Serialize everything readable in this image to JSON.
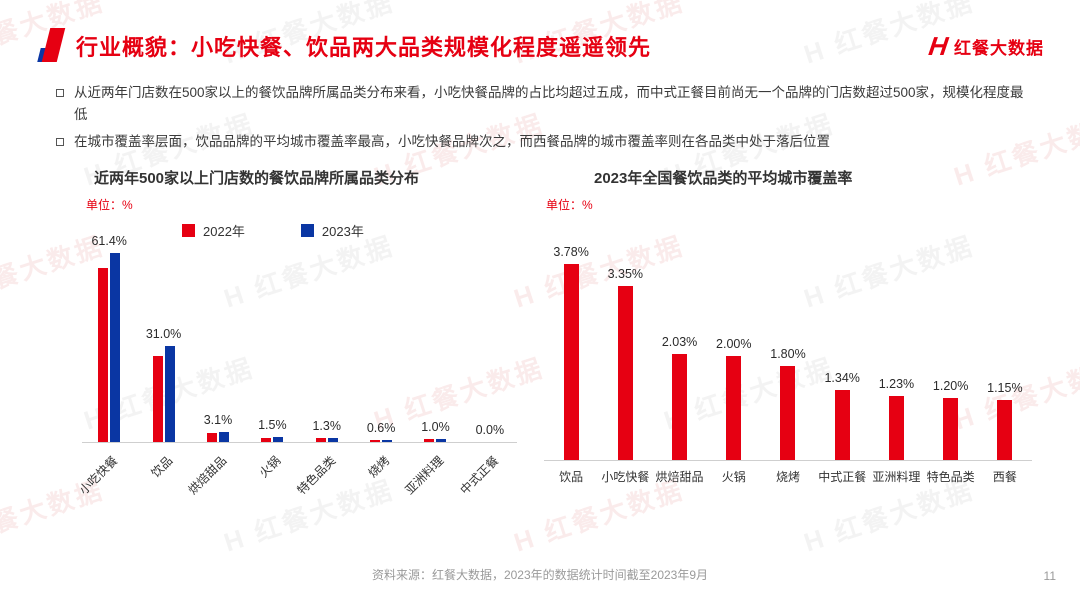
{
  "brand": {
    "red": "#e60012",
    "blue": "#0a36a3"
  },
  "header": {
    "title": "行业概貌：小吃快餐、饮品两大品类规模化程度遥遥领先",
    "logo_h": "H",
    "logo_text": "红餐大数据"
  },
  "watermark_text": "红餐大数据",
  "bullets": [
    "从近两年门店数在500家以上的餐饮品牌所属品类分布来看，小吃快餐品牌的占比均超过五成，而中式正餐目前尚无一个品牌的门店数超过500家，规模化程度最低",
    "在城市覆盖率层面，饮品品牌的平均城市覆盖率最高，小吃快餐品牌次之，而西餐品牌的城市覆盖率则在各品类中处于落后位置"
  ],
  "chart_data": [
    {
      "type": "bar",
      "title": "近两年500家以上门店数的餐饮品牌所属品类分布",
      "unit_label": "单位：%",
      "categories": [
        "小吃快餐",
        "饮品",
        "烘焙甜品",
        "火锅",
        "特色品类",
        "烧烤",
        "亚洲料理",
        "中式正餐"
      ],
      "series": [
        {
          "name": "2022年",
          "color": "#e60012",
          "values": [
            56.5,
            28.0,
            2.8,
            1.4,
            1.2,
            0.5,
            0.9,
            0.0
          ]
        },
        {
          "name": "2023年",
          "color": "#0a36a3",
          "values": [
            61.4,
            31.0,
            3.1,
            1.5,
            1.3,
            0.6,
            1.0,
            0.0
          ]
        }
      ],
      "data_labels": [
        "61.4%",
        "31.0%",
        "3.1%",
        "1.5%",
        "1.3%",
        "0.6%",
        "1.0%",
        "0.0%"
      ],
      "labels_refer_to": "2023年",
      "ylim": [
        0,
        65
      ],
      "rotate_labels": true,
      "legend_position": "top",
      "grid": false
    },
    {
      "type": "bar",
      "title": "2023年全国餐饮品类的平均城市覆盖率",
      "unit_label": "单位：%",
      "categories": [
        "饮品",
        "小吃快餐",
        "烘焙甜品",
        "火锅",
        "烧烤",
        "中式正餐",
        "亚洲料理",
        "特色品类",
        "西餐"
      ],
      "values": [
        3.78,
        3.35,
        2.03,
        2.0,
        1.8,
        1.34,
        1.23,
        1.2,
        1.15
      ],
      "bar_color": "#e60012",
      "data_labels": [
        "3.78%",
        "3.35%",
        "2.03%",
        "2.00%",
        "1.80%",
        "1.34%",
        "1.23%",
        "1.20%",
        "1.15%"
      ],
      "ylim": [
        0,
        4.2
      ],
      "rotate_labels": false,
      "grid": false
    }
  ],
  "footer": {
    "source": "资料来源：红餐大数据，2023年的数据统计时间截至2023年9月",
    "page_number": "11"
  }
}
